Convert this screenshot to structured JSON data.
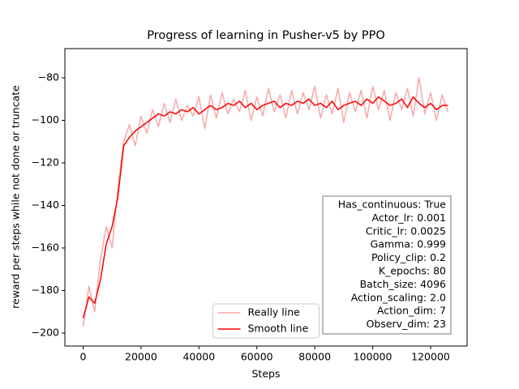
{
  "chart_data": {
    "type": "line",
    "title": "Progress of learning in Pusher-v5 by PPO",
    "x_label": "Steps",
    "y_label": "reward per steps while not done or truncate",
    "x": [
      0,
      2000,
      4000,
      6000,
      8000,
      10000,
      12000,
      14000,
      16000,
      18000,
      20000,
      22000,
      24000,
      26000,
      28000,
      30000,
      32000,
      34000,
      36000,
      38000,
      40000,
      42000,
      44000,
      46000,
      48000,
      50000,
      52000,
      54000,
      56000,
      58000,
      60000,
      62000,
      64000,
      66000,
      68000,
      70000,
      72000,
      74000,
      76000,
      78000,
      80000,
      82000,
      84000,
      86000,
      88000,
      90000,
      92000,
      94000,
      96000,
      98000,
      100000,
      102000,
      104000,
      106000,
      108000,
      110000,
      112000,
      114000,
      116000,
      118000,
      120000,
      122000,
      124000,
      126000
    ],
    "series": [
      {
        "name": "Really line",
        "color": "#f7a8a8",
        "width": 1.5,
        "values": [
          -197,
          -178,
          -190,
          -165,
          -150,
          -160,
          -132,
          -110,
          -102,
          -112,
          -98,
          -106,
          -95,
          -103,
          -92,
          -101,
          -90,
          -100,
          -93,
          -98,
          -89,
          -104,
          -88,
          -99,
          -87,
          -97,
          -90,
          -96,
          -86,
          -100,
          -89,
          -98,
          -85,
          -96,
          -88,
          -99,
          -86,
          -97,
          -87,
          -95,
          -84,
          -99,
          -88,
          -97,
          -85,
          -101,
          -87,
          -96,
          -86,
          -99,
          -84,
          -95,
          -86,
          -100,
          -87,
          -95,
          -85,
          -98,
          -80,
          -97,
          -87,
          -100,
          -88,
          -96
        ]
      },
      {
        "name": "Smooth line",
        "color": "#ff0000",
        "width": 1.5,
        "values": [
          -193,
          -183,
          -186,
          -175,
          -158,
          -150,
          -136,
          -112,
          -108,
          -105,
          -103,
          -101,
          -99,
          -97,
          -98,
          -96,
          -97,
          -95,
          -96,
          -94,
          -97,
          -95,
          -93,
          -95,
          -94,
          -92,
          -93,
          -91,
          -94,
          -92,
          -95,
          -93,
          -92,
          -91,
          -94,
          -92,
          -93,
          -91,
          -92,
          -90,
          -93,
          -92,
          -94,
          -91,
          -95,
          -93,
          -92,
          -91,
          -93,
          -90,
          -92,
          -89,
          -91,
          -93,
          -92,
          -90,
          -94,
          -89,
          -92,
          -94,
          -92,
          -95,
          -93,
          -93
        ]
      }
    ],
    "xlim": [
      -6300,
      132600
    ],
    "ylim": [
      -206.1,
      -66.3
    ],
    "xticks": [
      0,
      20000,
      40000,
      60000,
      80000,
      100000,
      120000
    ],
    "yticks": [
      {
        "value": -200,
        "label": "−200"
      },
      {
        "value": -180,
        "label": "−180"
      },
      {
        "value": -160,
        "label": "−160"
      },
      {
        "value": -140,
        "label": "−140"
      },
      {
        "value": -120,
        "label": "−120"
      },
      {
        "value": -100,
        "label": "−100"
      },
      {
        "value": -80,
        "label": "−80"
      }
    ],
    "legend": "lower center",
    "annotation": [
      "Has_continuous: True",
      "Actor_lr: 0.001",
      "Critic_lr: 0.0025",
      "Gamma: 0.999",
      "Policy_clip: 0.2",
      "K_epochs: 80",
      "Batch_size: 4096",
      "Action_scaling: 2.0",
      "Action_dim: 7",
      "Observ_dim: 23"
    ]
  }
}
